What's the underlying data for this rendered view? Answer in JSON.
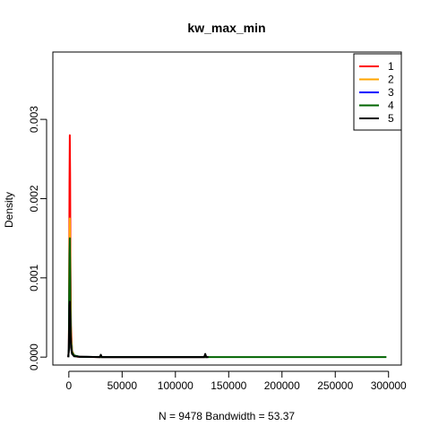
{
  "chart_data": {
    "type": "line",
    "title": "kw_max_min",
    "xlabel": "N = 9478   Bandwidth = 53.37",
    "ylabel": "Density",
    "xlim": [
      -15000,
      312000
    ],
    "ylim": [
      -0.0001,
      0.00385
    ],
    "x_ticks": [
      0,
      50000,
      100000,
      150000,
      200000,
      250000,
      300000
    ],
    "y_ticks": [
      0.0,
      0.001,
      0.002,
      0.003
    ],
    "y_tick_labels": [
      "0.000",
      "0.001",
      "0.002",
      "0.003"
    ],
    "grid": false,
    "legend_position": "top-right",
    "colors": {
      "1": "#ff0000",
      "2": "#ffa500",
      "3": "#0000ff",
      "4": "#006400",
      "5": "#000000"
    },
    "series": [
      {
        "name": "1",
        "color": "#ff0000",
        "x": [
          -500,
          0,
          300,
          600,
          900,
          1200,
          1500,
          2000,
          3000,
          5000,
          8000,
          15000,
          30000,
          60000,
          100000,
          130000
        ],
        "y": [
          0,
          0.0001,
          0.0009,
          0.0022,
          0.0028,
          0.0023,
          0.0012,
          0.0004,
          8e-05,
          2e-05,
          5e-06,
          2e-06,
          1e-06,
          0,
          0,
          0
        ]
      },
      {
        "name": "2",
        "color": "#ffa500",
        "x": [
          -500,
          0,
          300,
          600,
          900,
          1200,
          1500,
          2000,
          3000,
          5000,
          10000,
          30000,
          100000,
          130000
        ],
        "y": [
          0,
          0.0001,
          0.0007,
          0.0014,
          0.00175,
          0.0014,
          0.0008,
          0.0003,
          8e-05,
          2e-05,
          5e-06,
          1e-06,
          0,
          0
        ]
      },
      {
        "name": "3",
        "color": "#0000ff",
        "x": [
          -500,
          0,
          300,
          600,
          900,
          1200,
          1500,
          2000,
          3000,
          5000,
          10000,
          30000,
          100000,
          130000
        ],
        "y": [
          0,
          0.0001,
          0.0006,
          0.0011,
          0.0012,
          0.0009,
          0.0005,
          0.0002,
          6e-05,
          2e-05,
          5e-06,
          1e-06,
          0,
          0
        ]
      },
      {
        "name": "4",
        "color": "#006400",
        "x": [
          -500,
          0,
          300,
          600,
          900,
          1200,
          1500,
          2000,
          3000,
          5000,
          10000,
          30000,
          100000,
          200000,
          298000
        ],
        "y": [
          0,
          0.0001,
          0.0007,
          0.0013,
          0.0015,
          0.0012,
          0.0006,
          0.0002,
          6e-05,
          2e-05,
          5e-06,
          1e-06,
          0,
          0,
          0
        ]
      },
      {
        "name": "5",
        "color": "#000000",
        "x": [
          -500,
          0,
          300,
          600,
          900,
          1200,
          1500,
          2000,
          3000,
          5000,
          10000,
          29000,
          30000,
          31000,
          60000,
          127000,
          128000,
          129000,
          131000
        ],
        "y": [
          0,
          0.0001,
          0.0004,
          0.00065,
          0.0007,
          0.0005,
          0.0003,
          0.00012,
          4e-05,
          1e-05,
          4e-06,
          0,
          3e-05,
          0,
          0,
          0,
          4e-05,
          0,
          0
        ]
      }
    ]
  }
}
